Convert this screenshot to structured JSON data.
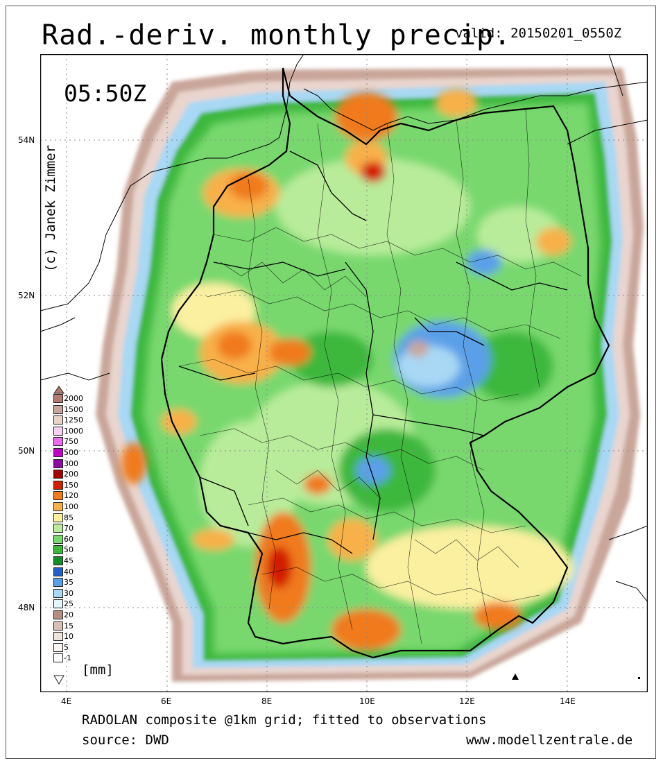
{
  "header": {
    "title": "Rad.-deriv. monthly precip.",
    "valid": "valid: 20150201_0550Z",
    "time": "05:50Z",
    "copyright": "(c) Janek Zimmer"
  },
  "map": {
    "lat_labels": [
      "54N",
      "52N",
      "50N",
      "48N"
    ],
    "lon_labels": [
      "4E",
      "6E",
      "8E",
      "10E",
      "12E",
      "14E"
    ],
    "colors": {
      "land_bg": "#ffffff",
      "border": "#000000",
      "grid": "#888888"
    },
    "markers": [
      "triangle-icon"
    ]
  },
  "legend": {
    "unit": "[mm]",
    "entries": [
      {
        "label": "2000",
        "color": "#b5796e"
      },
      {
        "label": "1500",
        "color": "#c8a69a"
      },
      {
        "label": "1250",
        "color": "#e9d3c9"
      },
      {
        "label": "1000",
        "color": "#f8d0f4"
      },
      {
        "label": "750",
        "color": "#ee6bee"
      },
      {
        "label": "500",
        "color": "#c300c8"
      },
      {
        "label": "300",
        "color": "#8c0aa0"
      },
      {
        "label": "200",
        "color": "#a50000"
      },
      {
        "label": "150",
        "color": "#d41e00"
      },
      {
        "label": "120",
        "color": "#f07a1c"
      },
      {
        "label": "100",
        "color": "#f8b04a"
      },
      {
        "label": "85",
        "color": "#fbf0a0"
      },
      {
        "label": "70",
        "color": "#b8ec9a"
      },
      {
        "label": "60",
        "color": "#78d86e"
      },
      {
        "label": "50",
        "color": "#3cb83c"
      },
      {
        "label": "45",
        "color": "#168c28"
      },
      {
        "label": "40",
        "color": "#2060c8"
      },
      {
        "label": "35",
        "color": "#5aa0e8"
      },
      {
        "label": "30",
        "color": "#a8d8f4"
      },
      {
        "label": "25",
        "color": "#e2f6fb"
      },
      {
        "label": "20",
        "color": "#b59080"
      },
      {
        "label": "15",
        "color": "#d8c0b4"
      },
      {
        "label": "10",
        "color": "#efe3dc"
      },
      {
        "label": "5",
        "color": "#faf5f2"
      },
      {
        "label": "-1",
        "color": "#ffffff"
      }
    ]
  },
  "footer": {
    "line1": "RADOLAN composite @1km grid; fitted to observations",
    "line2": "source: DWD",
    "website": "www.modellzentrale.de"
  }
}
